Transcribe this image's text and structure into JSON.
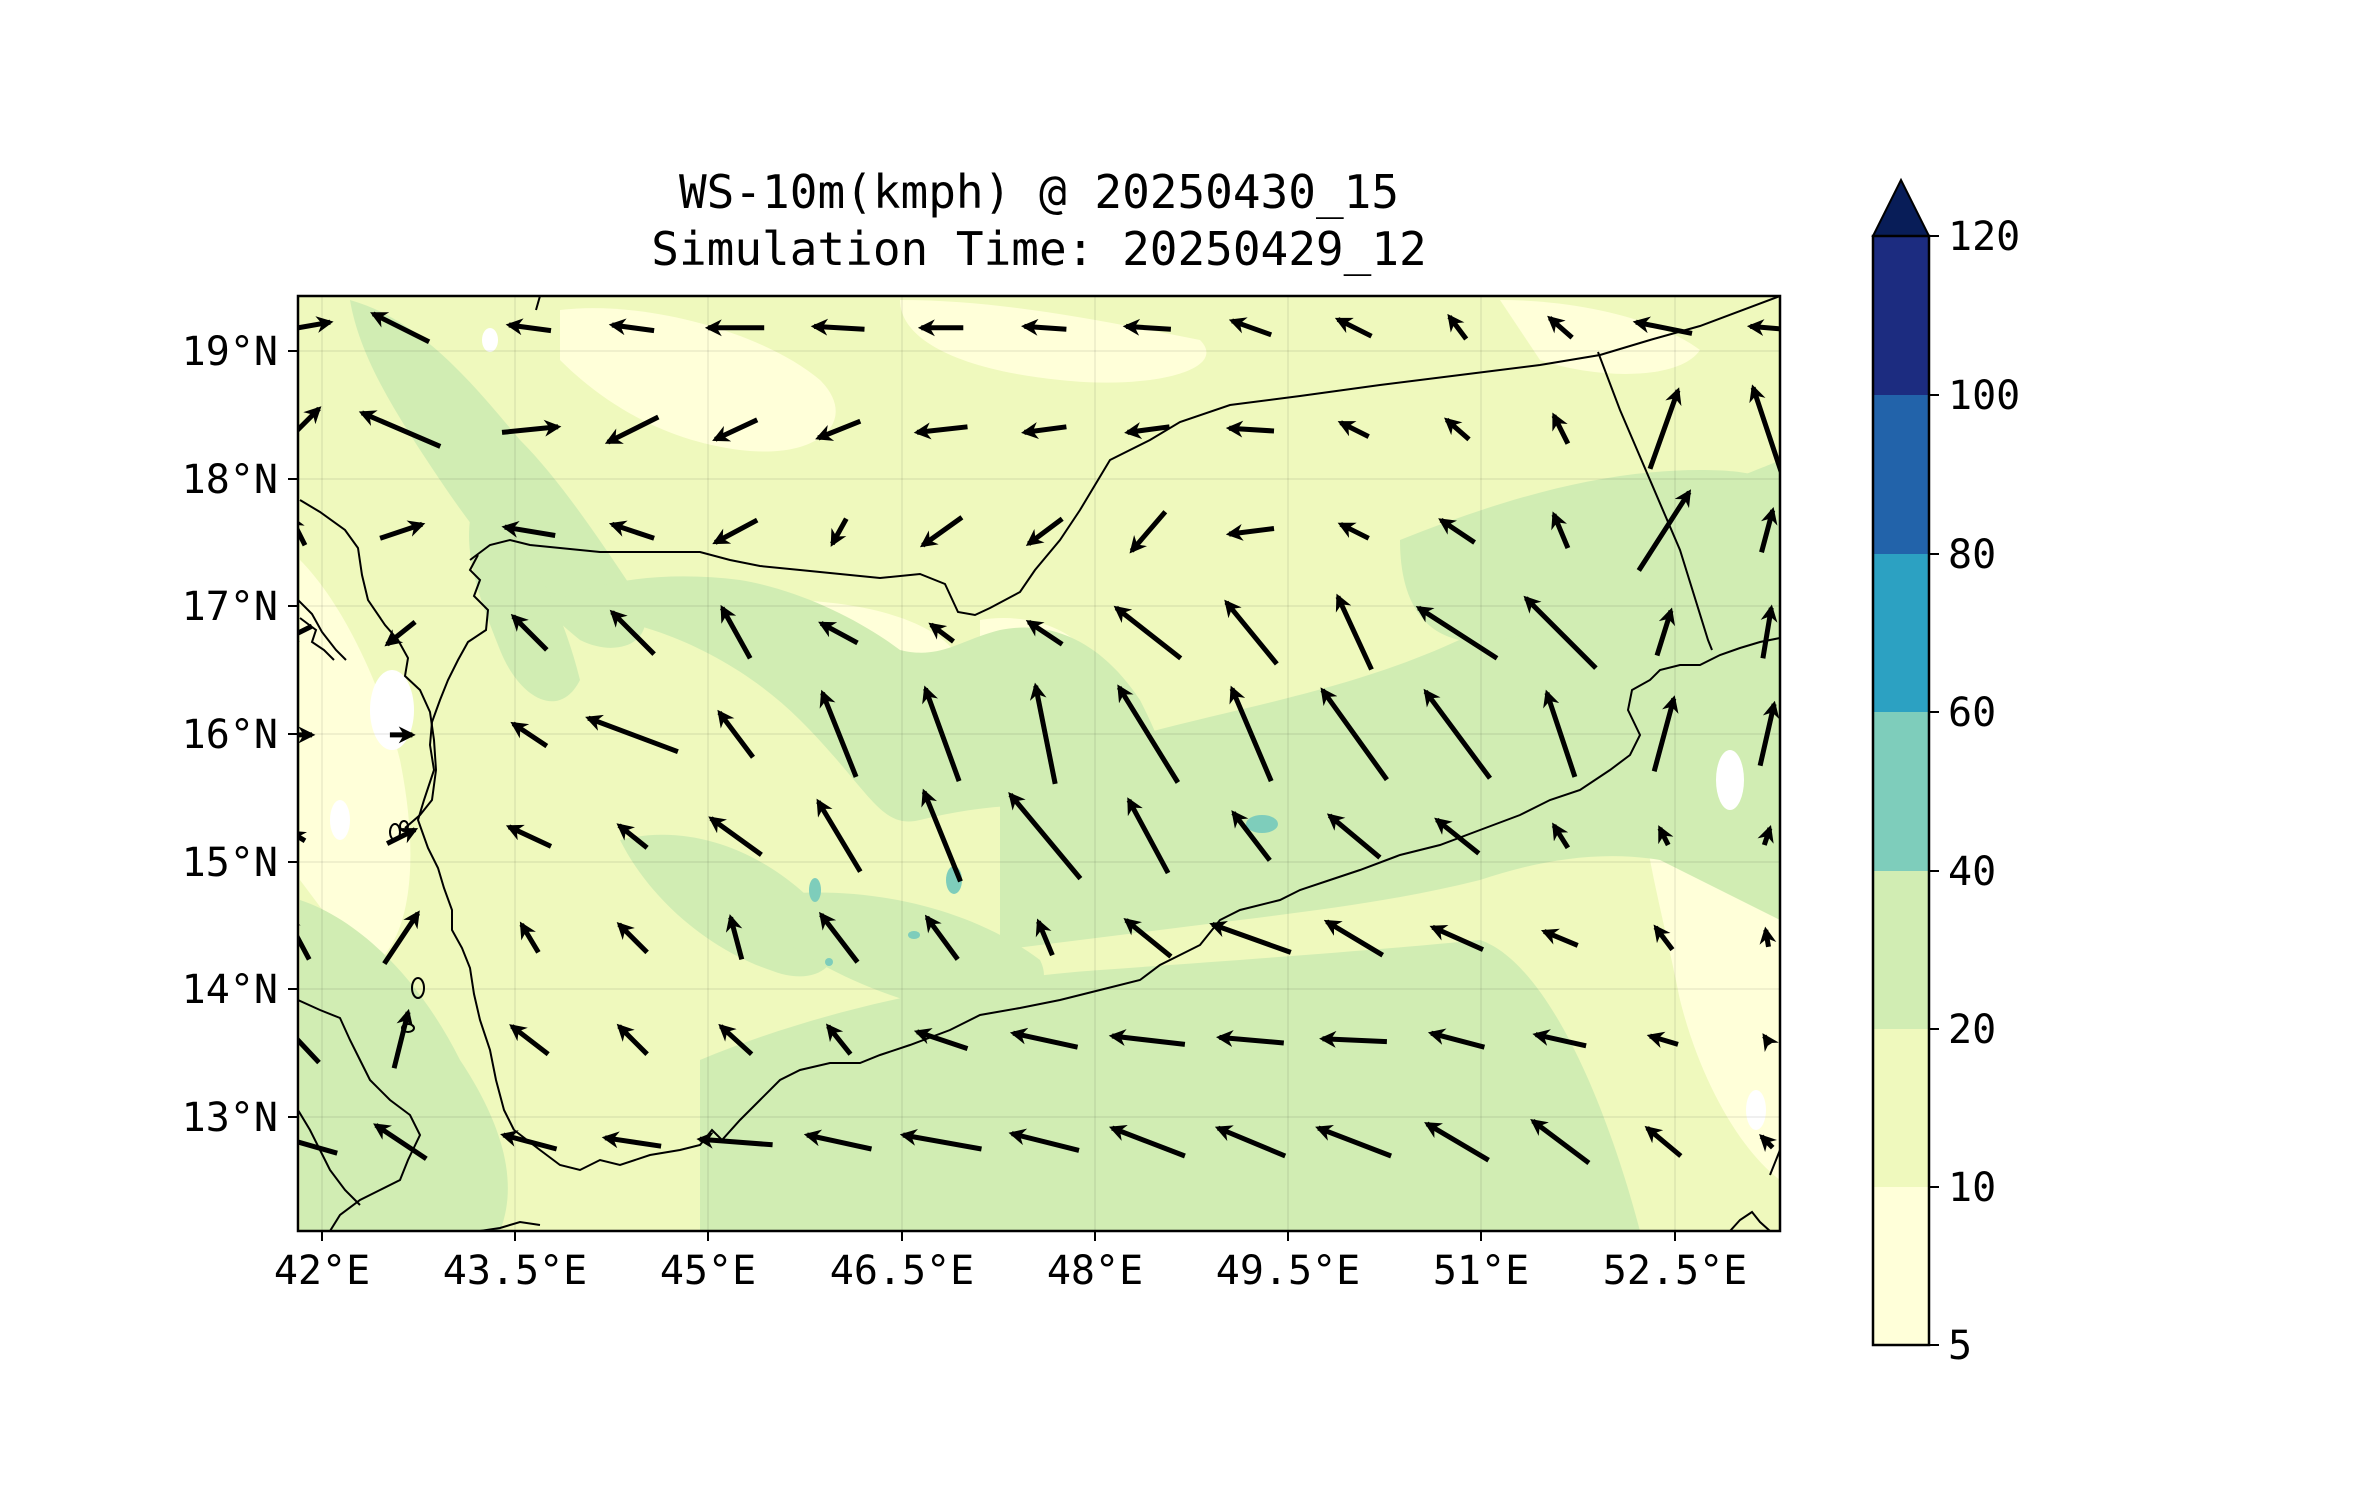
{
  "title": {
    "line1": "WS-10m(kmph) @ 20250430_15",
    "line2": "Simulation Time: 20250429_12"
  },
  "map": {
    "lon_range": [
      42,
      53.5
    ],
    "lat_range": [
      12.1,
      19.45
    ],
    "x_ticks": [
      "42°E",
      "43.5°E",
      "45°E",
      "46.5°E",
      "48°E",
      "49.5°E",
      "51°E",
      "52.5°E"
    ],
    "y_ticks": [
      "19°N",
      "18°N",
      "17°N",
      "16°N",
      "15°N",
      "14°N",
      "13°N"
    ],
    "gridlines": true
  },
  "colorbar": {
    "levels": [
      "5",
      "10",
      "20",
      "40",
      "60",
      "80",
      "100",
      "120"
    ],
    "colors": [
      "#ffffd9",
      "#eff9bd",
      "#d1edb3",
      "#7ecdbb",
      "#2ca1c2",
      "#2263aa",
      "#1c2c80"
    ],
    "extend_color": "#081d58",
    "extend": "max"
  },
  "shading_colors": {
    "5-10": "#ffffd9",
    "10-20": "#eff9bd",
    "20-40": "#d1edb3",
    "40-60": "#7ecdbb"
  },
  "chart_data": {
    "type": "vector-field",
    "variable": "WS-10m(kmph)",
    "grid_lons": [
      42.0,
      42.8,
      43.8,
      44.6,
      45.4,
      46.2,
      47.0,
      47.8,
      48.6,
      49.4,
      50.2,
      51.0,
      51.8,
      52.6,
      53.4
    ],
    "grid_lats": [
      19.2,
      18.4,
      17.6,
      16.8,
      16.0,
      15.2,
      14.4,
      13.6,
      12.8
    ],
    "u": [
      [
        2.3,
        -2.0,
        -1.5,
        -1.5,
        -2.0,
        -1.8,
        -1.5,
        -1.5,
        -1.6,
        -1.4,
        -1.2,
        -0.6,
        -0.8,
        -2.0,
        -1.2
      ],
      [
        1.5,
        -2.8,
        2.0,
        -1.8,
        -1.5,
        -1.5,
        -1.8,
        -1.5,
        -1.5,
        -1.6,
        -1.0,
        -0.8,
        -0.5,
        1.0,
        -1.0
      ],
      [
        -0.5,
        1.5,
        -1.8,
        -1.5,
        -1.5,
        -0.5,
        -1.4,
        -1.2,
        -1.2,
        -1.6,
        -1.0,
        -1.2,
        -0.5,
        1.8,
        0.4
      ],
      [
        -1.0,
        -1.0,
        -1.2,
        -1.5,
        -1.0,
        -1.3,
        -0.8,
        -1.2,
        -2.3,
        -1.8,
        -1.2,
        -2.8,
        -2.5,
        0.5,
        0.3
      ],
      [
        1.0,
        0.8,
        -1.2,
        -3.2,
        -1.2,
        -1.2,
        -1.2,
        -0.7,
        -2.1,
        -1.4,
        -2.3,
        -2.3,
        -1.0,
        0.7,
        0.5
      ],
      [
        -0.5,
        1.0,
        -1.5,
        -1.0,
        -1.8,
        -1.5,
        -1.3,
        -2.5,
        -1.4,
        -1.3,
        -1.8,
        -1.5,
        -0.5,
        -0.3,
        0.2
      ],
      [
        -0.8,
        1.2,
        -0.6,
        -1.0,
        -0.4,
        -1.3,
        -1.1,
        -0.5,
        -1.6,
        -2.8,
        -2.0,
        -1.8,
        -1.2,
        -0.6,
        -0.1
      ],
      [
        -1.5,
        0.5,
        -1.3,
        -1.0,
        -1.1,
        -0.8,
        -1.8,
        -2.3,
        -2.6,
        -2.3,
        -2.3,
        -1.9,
        -1.8,
        -1.0,
        -0.2
      ],
      [
        -2.8,
        -1.8,
        -1.9,
        -2.0,
        -2.6,
        -2.3,
        -2.8,
        -2.4,
        -2.6,
        -2.4,
        -2.6,
        -2.2,
        -2.0,
        -1.2,
        -0.4
      ]
    ],
    "v": [
      [
        0.4,
        1.0,
        0.2,
        0.2,
        0.0,
        0.1,
        0.0,
        0.1,
        0.1,
        0.5,
        0.6,
        0.8,
        0.7,
        0.4,
        0.1
      ],
      [
        1.5,
        1.2,
        0.2,
        -0.9,
        -0.7,
        -0.6,
        -0.2,
        -0.2,
        -0.2,
        0.1,
        0.5,
        0.7,
        1.0,
        2.8,
        3.0
      ],
      [
        1.0,
        0.5,
        0.3,
        0.5,
        -0.8,
        -0.9,
        -1.0,
        -0.9,
        -1.4,
        -0.2,
        0.5,
        0.8,
        1.2,
        2.8,
        1.5
      ],
      [
        -0.5,
        -0.8,
        1.2,
        1.5,
        1.8,
        0.7,
        0.6,
        0.8,
        1.8,
        2.2,
        2.6,
        1.8,
        2.5,
        1.6,
        1.8
      ],
      [
        0.0,
        0.0,
        0.8,
        1.2,
        1.6,
        3.0,
        3.3,
        3.5,
        3.4,
        3.3,
        3.2,
        3.1,
        3.0,
        2.6,
        2.2
      ],
      [
        0.3,
        0.5,
        0.7,
        0.8,
        1.3,
        2.5,
        3.2,
        3.0,
        2.6,
        1.7,
        1.5,
        1.2,
        0.8,
        0.6,
        0.6
      ],
      [
        1.5,
        1.8,
        1.0,
        1.0,
        1.5,
        1.7,
        1.5,
        1.2,
        1.3,
        1.0,
        1.2,
        0.8,
        0.5,
        0.8,
        0.6
      ],
      [
        1.6,
        2.0,
        1.0,
        1.0,
        1.0,
        1.0,
        0.6,
        0.5,
        0.3,
        0.2,
        0.1,
        0.5,
        0.4,
        0.3,
        0.3
      ],
      [
        0.8,
        1.2,
        0.5,
        0.3,
        0.2,
        0.5,
        0.5,
        0.6,
        1.0,
        1.0,
        1.0,
        1.3,
        1.5,
        1.0,
        0.4
      ]
    ]
  }
}
